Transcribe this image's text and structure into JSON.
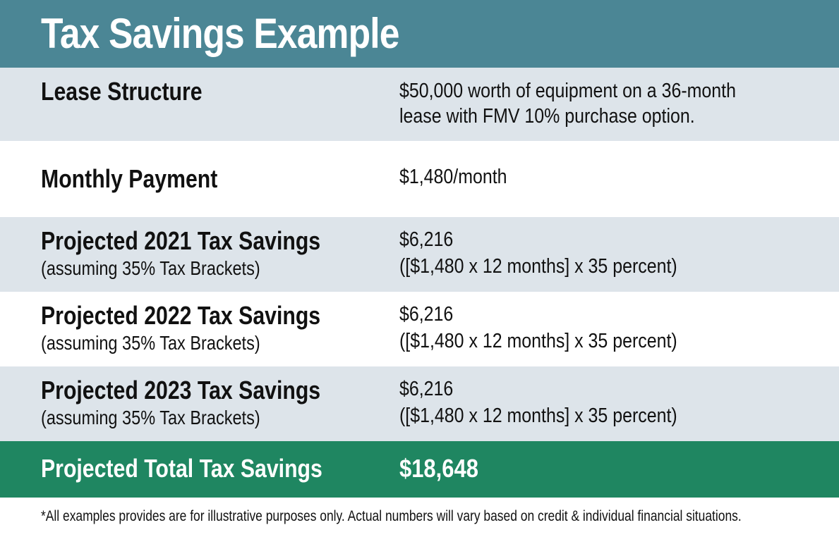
{
  "header": {
    "title": "Tax Savings Example"
  },
  "rows": [
    {
      "label": "Lease Structure",
      "value_lines": [
        "$50,000 worth of equipment on a 36-month",
        "lease with FMV 10% purchase option."
      ]
    },
    {
      "label": "Monthly Payment",
      "value_lines": [
        "$1,480/month"
      ]
    },
    {
      "label": "Projected 2021 Tax Savings",
      "sublabel": "(assuming 35% Tax Brackets)",
      "value_lines": [
        "$6,216",
        "([$1,480 x 12 months] x 35 percent)"
      ]
    },
    {
      "label": "Projected 2022 Tax Savings",
      "sublabel": "(assuming 35% Tax Brackets)",
      "value_lines": [
        "$6,216",
        "([$1,480 x 12 months] x 35 percent)"
      ]
    },
    {
      "label": "Projected 2023 Tax Savings",
      "sublabel": "(assuming 35% Tax Brackets)",
      "value_lines": [
        "$6,216",
        "([$1,480 x 12 months] x 35 percent)"
      ]
    }
  ],
  "total": {
    "label": "Projected Total Tax Savings",
    "value": "$18,648"
  },
  "footnote": "*All examples provides are for illustrative purposes only. Actual numbers will vary based on credit & individual financial situations.",
  "colors": {
    "header_bg": "#4b8695",
    "shaded_row_bg": "#dde4ea",
    "total_row_bg": "#1f8661"
  }
}
